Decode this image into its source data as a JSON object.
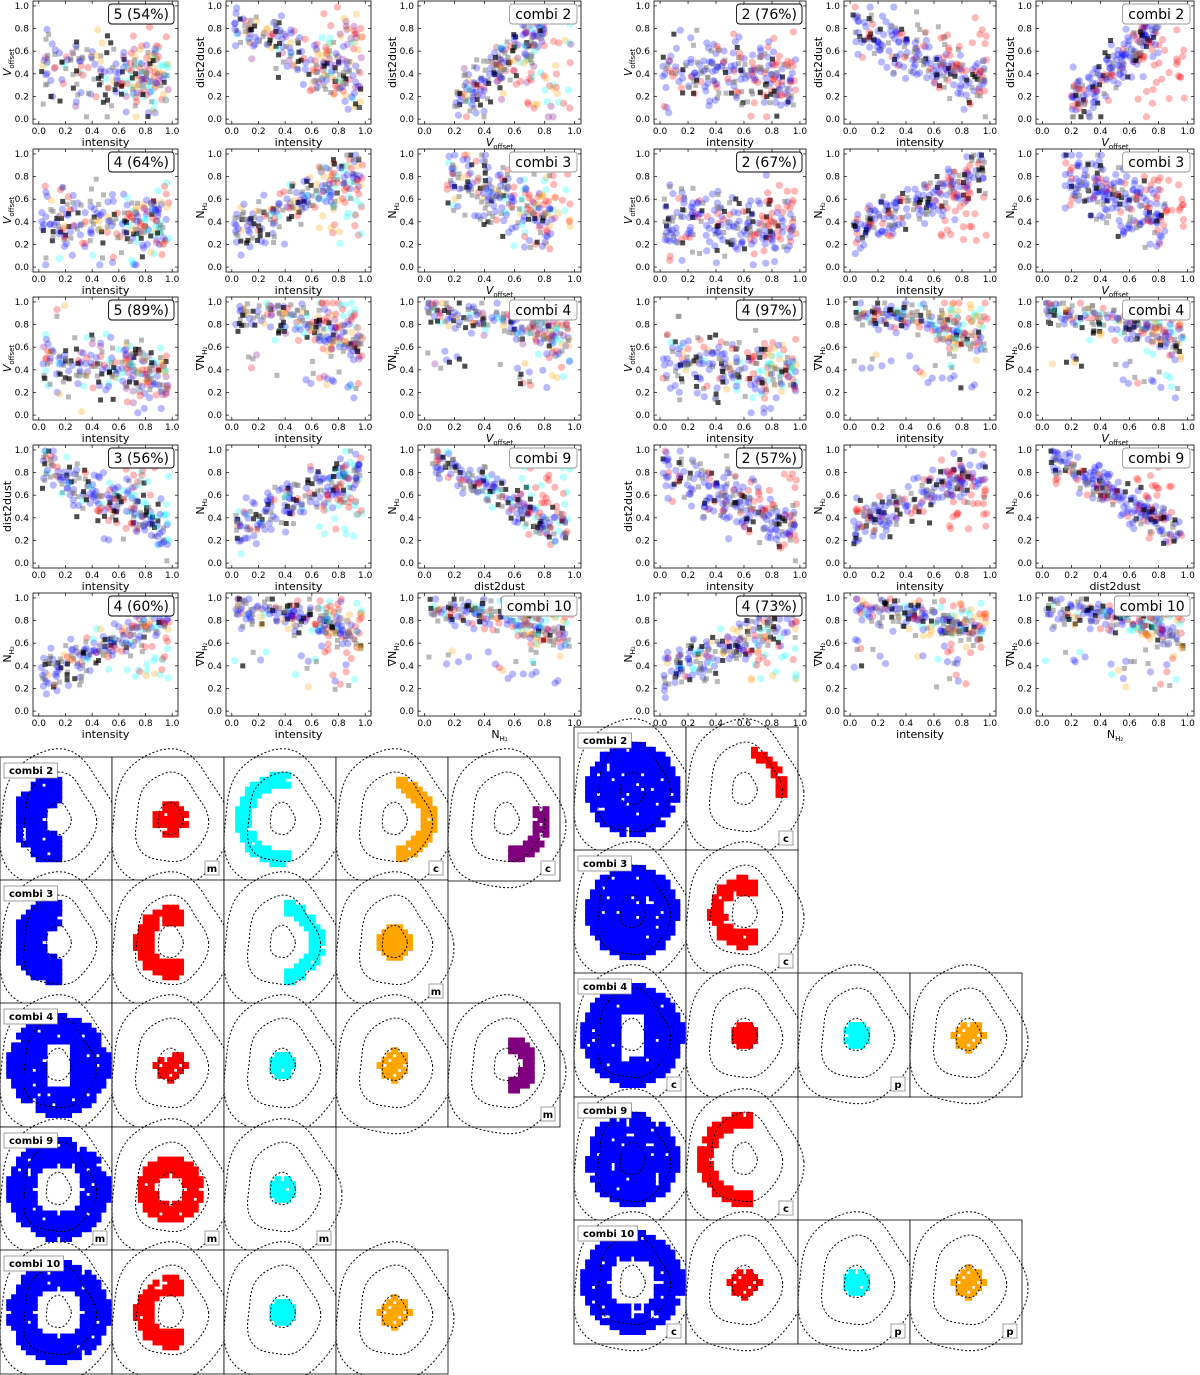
{
  "colors": {
    "blue": "#0000ff",
    "red": "#ff0000",
    "cyan": "#00ffff",
    "orange": "#ffa500",
    "purple": "#800080",
    "grey": "#808080",
    "black": "#000000"
  },
  "axis_names": {
    "intensity": "intensity",
    "dist2dust": "dist2dust",
    "voffset": "V",
    "voffset_sub": "offset",
    "nh2": "N",
    "nh2_sub": "H₂",
    "gradnh2": "∇N",
    "gradnh2_sub": "H₂"
  },
  "chart_data": [
    {
      "type": "scatter",
      "name": "left scatter grid",
      "xlim": [
        0,
        1
      ],
      "ylim": [
        0,
        1
      ],
      "ticks": [
        "0.0",
        "0.2",
        "0.4",
        "0.6",
        "0.8",
        "1.0"
      ],
      "rows": [
        {
          "badge": "5 (54%)",
          "combi": "combi 2",
          "panels": [
            {
              "x": "intensity",
              "y": "voffset"
            },
            {
              "x": "intensity",
              "y": "dist2dust"
            },
            {
              "x": "voffset",
              "y": "dist2dust"
            }
          ],
          "clusters": [
            "blue",
            "red",
            "cyan",
            "orange",
            "purple"
          ]
        },
        {
          "badge": "4 (64%)",
          "combi": "combi 3",
          "panels": [
            {
              "x": "intensity",
              "y": "voffset"
            },
            {
              "x": "intensity",
              "y": "nh2"
            },
            {
              "x": "voffset",
              "y": "nh2"
            }
          ],
          "clusters": [
            "blue",
            "red",
            "cyan",
            "orange"
          ]
        },
        {
          "badge": "5 (89%)",
          "combi": "combi 4",
          "panels": [
            {
              "x": "intensity",
              "y": "voffset"
            },
            {
              "x": "intensity",
              "y": "gradnh2"
            },
            {
              "x": "voffset",
              "y": "gradnh2"
            }
          ],
          "clusters": [
            "blue",
            "red",
            "cyan",
            "orange",
            "purple"
          ]
        },
        {
          "badge": "3 (56%)",
          "combi": "combi 9",
          "panels": [
            {
              "x": "intensity",
              "y": "dist2dust"
            },
            {
              "x": "intensity",
              "y": "nh2"
            },
            {
              "x": "dist2dust",
              "y": "nh2"
            }
          ],
          "clusters": [
            "blue",
            "red",
            "cyan"
          ]
        },
        {
          "badge": "4 (60%)",
          "combi": "combi 10",
          "panels": [
            {
              "x": "intensity",
              "y": "nh2"
            },
            {
              "x": "intensity",
              "y": "gradnh2"
            },
            {
              "x": "nh2",
              "y": "gradnh2"
            }
          ],
          "clusters": [
            "blue",
            "red",
            "cyan",
            "orange"
          ]
        }
      ]
    },
    {
      "type": "scatter",
      "name": "right scatter grid",
      "xlim": [
        0,
        1
      ],
      "ylim": [
        0,
        1
      ],
      "ticks": [
        "0.0",
        "0.2",
        "0.4",
        "0.6",
        "0.8",
        "1.0"
      ],
      "rows": [
        {
          "badge": "2 (76%)",
          "combi": "combi 2",
          "panels": [
            {
              "x": "intensity",
              "y": "voffset"
            },
            {
              "x": "intensity",
              "y": "dist2dust"
            },
            {
              "x": "voffset",
              "y": "dist2dust"
            }
          ],
          "clusters": [
            "blue",
            "red"
          ]
        },
        {
          "badge": "2 (67%)",
          "combi": "combi 3",
          "panels": [
            {
              "x": "intensity",
              "y": "voffset"
            },
            {
              "x": "intensity",
              "y": "nh2"
            },
            {
              "x": "voffset",
              "y": "nh2"
            }
          ],
          "clusters": [
            "blue",
            "red"
          ]
        },
        {
          "badge": "4 (97%)",
          "combi": "combi 4",
          "panels": [
            {
              "x": "intensity",
              "y": "voffset"
            },
            {
              "x": "intensity",
              "y": "gradnh2"
            },
            {
              "x": "voffset",
              "y": "gradnh2"
            }
          ],
          "clusters": [
            "blue",
            "red",
            "cyan",
            "orange"
          ]
        },
        {
          "badge": "2 (57%)",
          "combi": "combi 9",
          "panels": [
            {
              "x": "intensity",
              "y": "dist2dust"
            },
            {
              "x": "intensity",
              "y": "nh2"
            },
            {
              "x": "dist2dust",
              "y": "nh2"
            }
          ],
          "clusters": [
            "blue",
            "red"
          ]
        },
        {
          "badge": "4 (73%)",
          "combi": "combi 10",
          "panels": [
            {
              "x": "intensity",
              "y": "nh2"
            },
            {
              "x": "intensity",
              "y": "gradnh2"
            },
            {
              "x": "nh2",
              "y": "gradnh2"
            }
          ],
          "clusters": [
            "blue",
            "red",
            "cyan",
            "orange"
          ]
        }
      ]
    },
    {
      "type": "heatmap",
      "name": "left cluster maps",
      "rows": [
        {
          "combi": "combi 2",
          "maps": [
            {
              "color": "blue",
              "shape": "west-crescent",
              "tag": ""
            },
            {
              "color": "red",
              "shape": "core",
              "tag": "m"
            },
            {
              "color": "cyan",
              "shape": "west-arc",
              "tag": ""
            },
            {
              "color": "orange",
              "shape": "east-arc",
              "tag": "c"
            },
            {
              "color": "purple",
              "shape": "southeast-arc",
              "tag": "c"
            }
          ]
        },
        {
          "combi": "combi 3",
          "maps": [
            {
              "color": "blue",
              "shape": "west-crescent",
              "tag": ""
            },
            {
              "color": "red",
              "shape": "west-c",
              "tag": ""
            },
            {
              "color": "cyan",
              "shape": "east-arc",
              "tag": ""
            },
            {
              "color": "orange",
              "shape": "core",
              "tag": "m"
            }
          ]
        },
        {
          "combi": "combi 4",
          "maps": [
            {
              "color": "blue",
              "shape": "full-ring",
              "tag": ""
            },
            {
              "color": "red",
              "shape": "center-patches",
              "tag": ""
            },
            {
              "color": "cyan",
              "shape": "center-small",
              "tag": ""
            },
            {
              "color": "orange",
              "shape": "center-patches",
              "tag": ""
            },
            {
              "color": "purple",
              "shape": "east-inner",
              "tag": "m"
            }
          ]
        },
        {
          "combi": "combi 9",
          "maps": [
            {
              "color": "blue",
              "shape": "outer-ring",
              "tag": "m"
            },
            {
              "color": "red",
              "shape": "inner-ring",
              "tag": "m"
            },
            {
              "color": "cyan",
              "shape": "center-small",
              "tag": "m"
            }
          ]
        },
        {
          "combi": "combi 10",
          "maps": [
            {
              "color": "blue",
              "shape": "outer-ring",
              "tag": ""
            },
            {
              "color": "red",
              "shape": "west-c",
              "tag": ""
            },
            {
              "color": "cyan",
              "shape": "center-small",
              "tag": ""
            },
            {
              "color": "orange",
              "shape": "center-patches",
              "tag": ""
            }
          ]
        }
      ]
    },
    {
      "type": "heatmap",
      "name": "right cluster maps",
      "rows": [
        {
          "combi": "combi 2",
          "maps": [
            {
              "color": "blue",
              "shape": "big-blob",
              "tag": ""
            },
            {
              "color": "red",
              "shape": "east-dots",
              "tag": "c"
            }
          ]
        },
        {
          "combi": "combi 3",
          "maps": [
            {
              "color": "blue",
              "shape": "big-blob",
              "tag": ""
            },
            {
              "color": "red",
              "shape": "west-c",
              "tag": "c"
            }
          ]
        },
        {
          "combi": "combi 4",
          "maps": [
            {
              "color": "blue",
              "shape": "full-ring",
              "tag": "c"
            },
            {
              "color": "red",
              "shape": "center-small",
              "tag": ""
            },
            {
              "color": "cyan",
              "shape": "center-small",
              "tag": "p"
            },
            {
              "color": "orange",
              "shape": "center-patches",
              "tag": ""
            }
          ]
        },
        {
          "combi": "combi 9",
          "maps": [
            {
              "color": "blue",
              "shape": "big-blob",
              "tag": ""
            },
            {
              "color": "red",
              "shape": "west-arc",
              "tag": "c"
            }
          ]
        },
        {
          "combi": "combi 10",
          "maps": [
            {
              "color": "blue",
              "shape": "outer-ring",
              "tag": "c"
            },
            {
              "color": "red",
              "shape": "center-patches",
              "tag": ""
            },
            {
              "color": "cyan",
              "shape": "center-small",
              "tag": "p"
            },
            {
              "color": "orange",
              "shape": "center-patches",
              "tag": "p"
            }
          ]
        }
      ]
    }
  ]
}
